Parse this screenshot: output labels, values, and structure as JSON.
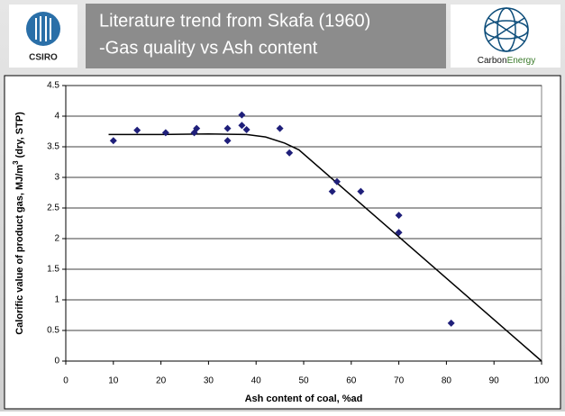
{
  "header": {
    "title_lines": [
      "Literature trend from Skafa (1960)",
      "-Gas quality vs Ash content"
    ],
    "left_logo": "CSIRO",
    "right_logo": [
      "Carbon",
      "Energy"
    ]
  },
  "chart_data": {
    "type": "scatter",
    "x": [
      10,
      15,
      21,
      27,
      27.5,
      34,
      34,
      37,
      37,
      38,
      45,
      47,
      56,
      57,
      62,
      70,
      70,
      81
    ],
    "values": [
      3.6,
      3.77,
      3.73,
      3.73,
      3.8,
      3.8,
      3.6,
      4.02,
      3.85,
      3.78,
      3.8,
      3.4,
      2.77,
      2.93,
      2.77,
      2.38,
      2.1,
      0.62
    ],
    "color": "#1f1f7a",
    "trend": {
      "x": [
        9,
        20,
        30,
        38,
        42,
        46,
        49,
        100
      ],
      "values": [
        3.7,
        3.7,
        3.71,
        3.7,
        3.66,
        3.56,
        3.45,
        0
      ],
      "color": "#000000"
    },
    "xlim": [
      0,
      100
    ],
    "xticks": [
      0,
      10,
      20,
      30,
      40,
      50,
      60,
      70,
      80,
      90,
      100
    ],
    "ylim": [
      0,
      4.5
    ],
    "yticks": [
      0,
      0.5,
      1,
      1.5,
      2,
      2.5,
      3,
      3.5,
      4,
      4.5
    ],
    "grid": true,
    "x_label": "Ash content of coal, %ad",
    "y_label": [
      "Calorific value of product gas, MJ/m",
      "3",
      " (dry, STP)"
    ]
  }
}
